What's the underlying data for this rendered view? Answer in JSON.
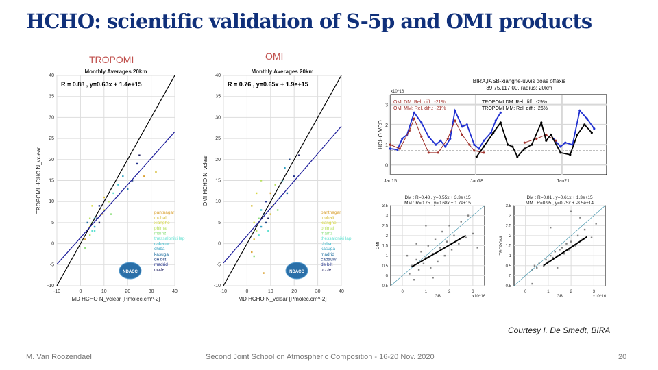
{
  "slide": {
    "title": "HCHO: scientific validation of S-5p and OMI products",
    "label_tropomi": "TROPOMI",
    "label_omi": "OMI",
    "courtesy": "Courtesy I. De Smedt, BIRA",
    "footer_author": "M. Van Roozendael",
    "footer_event": "Second Joint School on Atmospheric Composition - 16-20 Nov. 2020",
    "page_number": "20",
    "logo_text": "NDACC"
  },
  "colors": {
    "title": "#10307a",
    "fit": "#1a1a9a",
    "one_to_one": "#000000",
    "ground": "#1f2fd0",
    "omi": "#a0302a",
    "tropomi": "#000000",
    "scatter": "#808080"
  },
  "chart_data": [
    {
      "type": "scatter",
      "title": "Monthly Averages 20km",
      "annotation": "R = 0.88 , y=0.63x + 1.4e+15",
      "xlabel": "MD HCHO N_vclear [Pmolec.cm^-2]",
      "ylabel": "TROPOMI HCHO N_vclear",
      "xlim": [
        -10,
        40
      ],
      "ylim": [
        -10,
        40
      ],
      "xticks": [
        "-10",
        "0",
        "10",
        "20",
        "30",
        "40"
      ],
      "yticks": [
        "-10",
        "-5",
        "0",
        "5",
        "10",
        "15",
        "20",
        "25",
        "30",
        "35",
        "40"
      ],
      "grid": true,
      "lines": [
        {
          "name": "1:1",
          "slope": 1,
          "intercept": 0
        },
        {
          "name": "fit",
          "slope": 0.63,
          "intercept": 1.4
        }
      ],
      "legend": [
        "pantnagar",
        "mohali",
        "xianghe",
        "phimai",
        "mainz",
        "thessaloniki lap",
        "cabauw",
        "chiba",
        "kasuga",
        "de bilt",
        "madrid",
        "uccle"
      ],
      "legend_colors": [
        "#d9a030",
        "#d8c040",
        "#d8d840",
        "#b8e060",
        "#90e080",
        "#60e0d0",
        "#40c0d0",
        "#30a0c0",
        "#2070a0",
        "#204080",
        "#20308a",
        "#202060"
      ],
      "points": [
        [
          2,
          1
        ],
        [
          3,
          3
        ],
        [
          4,
          4
        ],
        [
          4,
          2
        ],
        [
          5,
          5
        ],
        [
          5,
          3
        ],
        [
          6,
          6
        ],
        [
          6,
          4
        ],
        [
          3,
          5
        ],
        [
          7,
          6
        ],
        [
          8,
          9
        ],
        [
          8,
          5
        ],
        [
          9,
          7
        ],
        [
          10,
          11
        ],
        [
          10,
          8
        ],
        [
          12,
          10
        ],
        [
          13,
          7
        ],
        [
          14,
          12
        ],
        [
          16,
          14
        ],
        [
          18,
          16
        ],
        [
          20,
          13
        ],
        [
          22,
          15
        ],
        [
          24,
          19
        ],
        [
          25,
          21
        ],
        [
          27,
          16
        ],
        [
          32,
          17
        ],
        [
          5,
          9
        ],
        [
          4,
          6
        ],
        [
          2,
          -1
        ],
        [
          6,
          3
        ]
      ]
    },
    {
      "type": "scatter",
      "title": "Monthly Averages 20km",
      "annotation": "R = 0.76 , y=0.65x + 1.9e+15",
      "xlabel": "MD HCHO N_vclear [Pmolec.cm^-2]",
      "ylabel": "OMI HCHO N_vclear",
      "xlim": [
        -10,
        40
      ],
      "ylim": [
        -10,
        40
      ],
      "xticks": [
        "-10",
        "0",
        "10",
        "20",
        "30",
        "40"
      ],
      "yticks": [
        "-10",
        "-5",
        "0",
        "5",
        "10",
        "15",
        "20",
        "25",
        "30",
        "35",
        "40"
      ],
      "grid": true,
      "lines": [
        {
          "name": "1:1",
          "slope": 1,
          "intercept": 0
        },
        {
          "name": "fit",
          "slope": 0.65,
          "intercept": 1.9
        }
      ],
      "legend": [
        "pantnagar",
        "mohali",
        "xianghe",
        "phimai",
        "mainz",
        "thessaloniki lap",
        "chiba",
        "kasuga",
        "madrid",
        "cabauw",
        "de bilt",
        "uccle"
      ],
      "legend_colors": [
        "#d9a030",
        "#d8c040",
        "#d8d840",
        "#b8e060",
        "#90e080",
        "#60e0d0",
        "#40c0d0",
        "#30a0c0",
        "#2070a0",
        "#204080",
        "#20308a",
        "#202060"
      ],
      "points": [
        [
          2,
          -2
        ],
        [
          3,
          1
        ],
        [
          3,
          5
        ],
        [
          4,
          3
        ],
        [
          5,
          6
        ],
        [
          5,
          2
        ],
        [
          6,
          8
        ],
        [
          6,
          4
        ],
        [
          7,
          7
        ],
        [
          8,
          5
        ],
        [
          8,
          10
        ],
        [
          9,
          6
        ],
        [
          10,
          12
        ],
        [
          10,
          7
        ],
        [
          11,
          9
        ],
        [
          12,
          14
        ],
        [
          13,
          8
        ],
        [
          14,
          11
        ],
        [
          15,
          15
        ],
        [
          16,
          18
        ],
        [
          17,
          12
        ],
        [
          18,
          20
        ],
        [
          20,
          16
        ],
        [
          22,
          21
        ],
        [
          7,
          -7
        ],
        [
          2,
          9
        ],
        [
          4,
          12
        ],
        [
          6,
          15
        ],
        [
          3,
          -3
        ],
        [
          9,
          3
        ]
      ]
    },
    {
      "type": "line",
      "title": "BIRA,IASB-xianghe-uvvis doas offaxis",
      "subtitle": "39.75,117.00, radius: 20km",
      "ylabel": "HCHO VCD",
      "yscale_label": "x10^16",
      "xticks": [
        "Jan15",
        "Jan18",
        "Jan21"
      ],
      "yticks": [
        "0",
        "1",
        "2",
        "3"
      ],
      "ylim": [
        -0.5,
        3.5
      ],
      "grid": true,
      "annotations": [
        "OMI DM: Rel. diff.: -21%",
        "OMI MM: Rel. diff.: -21%",
        "TROPOMI DM: Rel. diff.: -29%",
        "TROPOMI MM: Rel. diff.: -26%"
      ],
      "series": [
        {
          "color": "#1f2fd0",
          "points": [
            [
              "2015-02",
              0.8
            ],
            [
              "2015-05",
              0.75
            ],
            [
              "2015-07",
              1.3
            ],
            [
              "2015-09",
              1.5
            ],
            [
              "2015-12",
              2.6
            ],
            [
              "2016-03",
              2.1
            ],
            [
              "2016-06",
              1.4
            ],
            [
              "2016-09",
              1.0
            ],
            [
              "2016-11",
              1.2
            ],
            [
              "2017-01",
              0.9
            ],
            [
              "2017-03",
              1.3
            ],
            [
              "2017-05",
              2.7
            ],
            [
              "2017-08",
              1.9
            ],
            [
              "2017-10",
              2.0
            ],
            [
              "2018-01",
              1.0
            ],
            [
              "2018-03",
              0.8
            ],
            [
              "2018-05",
              1.2
            ],
            [
              "2018-08",
              1.6
            ],
            [
              "2018-10",
              2.2
            ],
            [
              "2018-12",
              2.6
            ],
            null,
            [
              "2020-10",
              1.3
            ],
            [
              "2021-01",
              0.9
            ],
            [
              "2021-03",
              1.1
            ],
            [
              "2021-06",
              1.0
            ],
            [
              "2021-09",
              2.7
            ],
            [
              "2021-12",
              2.3
            ],
            [
              "2022-03",
              1.8
            ]
          ]
        },
        {
          "name": "OMI",
          "color": "#a0302a",
          "points": [
            [
              "2015-02",
              1.0
            ],
            [
              "2015-06",
              0.8
            ],
            [
              "2015-10",
              1.7
            ],
            [
              "2015-12",
              2.3
            ],
            [
              "2016-03",
              1.4
            ],
            [
              "2016-06",
              0.6
            ],
            [
              "2016-10",
              0.6
            ],
            [
              "2017-02",
              1.3
            ],
            [
              "2017-05",
              2.2
            ],
            [
              "2017-08",
              1.5
            ],
            [
              "2017-11",
              1.0
            ],
            [
              "2018-01",
              0.7
            ],
            [
              "2018-05",
              0.6
            ],
            null,
            [
              "2019-10",
              1.1
            ],
            [
              "2020-03",
              1.3
            ],
            [
              "2020-07",
              1.5
            ],
            [
              "2020-11",
              1.2
            ]
          ]
        },
        {
          "name": "TROPOMI",
          "color": "#000000",
          "points": [
            [
              "2018-02",
              0.4
            ],
            [
              "2018-05",
              0.9
            ],
            [
              "2018-09",
              1.6
            ],
            [
              "2018-12",
              2.1
            ],
            [
              "2019-03",
              1.0
            ],
            [
              "2019-05",
              0.9
            ],
            [
              "2019-07",
              0.4
            ],
            [
              "2019-10",
              0.8
            ],
            [
              "2020-01",
              1.0
            ],
            [
              "2020-05",
              2.1
            ],
            [
              "2020-07",
              1.2
            ],
            [
              "2020-09",
              1.5
            ],
            [
              "2021-01",
              0.6
            ],
            [
              "2021-05",
              0.5
            ],
            [
              "2021-08",
              1.5
            ],
            [
              "2021-11",
              2.0
            ],
            [
              "2022-02",
              1.6
            ]
          ]
        }
      ]
    },
    {
      "type": "scatter",
      "annotation": [
        "DM : R=0.48 , y=0.55x + 3.3e+15",
        "MM : R=0.75 , y=0.68x + 1.7e+15"
      ],
      "xlabel": "GB",
      "ylabel": "OMI",
      "xscale_label": "x10^16",
      "xlim": [
        -0.5,
        3.5
      ],
      "ylim": [
        -0.5,
        3.5
      ],
      "xticks": [
        "0",
        "1",
        "2",
        "3"
      ],
      "yticks": [
        "-0.5",
        "0",
        "0.5",
        "1",
        "1.5",
        "2",
        "2.5",
        "3",
        "3.5"
      ],
      "grid": true,
      "lines": [
        {
          "name": "1:1",
          "slope": 1,
          "intercept": 0
        },
        {
          "name": "MM fit",
          "slope": 0.68,
          "intercept": 0.17,
          "from": 0.4,
          "to": 2.7
        }
      ],
      "points": [
        [
          0.3,
          0.1
        ],
        [
          0.4,
          0.5
        ],
        [
          0.5,
          -0.2
        ],
        [
          0.6,
          0.8
        ],
        [
          0.7,
          0.3
        ],
        [
          0.8,
          1.2
        ],
        [
          0.9,
          0.6
        ],
        [
          1.0,
          0.9
        ],
        [
          1.1,
          1.5
        ],
        [
          1.2,
          0.4
        ],
        [
          1.3,
          1.1
        ],
        [
          1.4,
          1.8
        ],
        [
          1.5,
          0.7
        ],
        [
          1.6,
          1.4
        ],
        [
          1.7,
          2.2
        ],
        [
          1.8,
          1.0
        ],
        [
          1.9,
          1.7
        ],
        [
          2.0,
          2.5
        ],
        [
          2.1,
          1.3
        ],
        [
          2.2,
          2.0
        ],
        [
          2.4,
          1.6
        ],
        [
          2.5,
          2.7
        ],
        [
          2.7,
          1.9
        ],
        [
          3.0,
          2.1
        ],
        [
          3.2,
          1.4
        ],
        [
          0.2,
          1.0
        ],
        [
          0.6,
          1.6
        ],
        [
          1.0,
          2.5
        ],
        [
          1.3,
          -0.1
        ],
        [
          2.8,
          3.0
        ]
      ]
    },
    {
      "type": "scatter",
      "annotation": [
        "DM : R=0.81 , y=0.61x + 1.3e+15",
        "MM : R=0.95 , y=0.75x + -8.5e+14"
      ],
      "xlabel": "GB",
      "ylabel": "TROPOMI",
      "xscale_label": "x10^16",
      "xlim": [
        -0.5,
        3.5
      ],
      "ylim": [
        -0.5,
        3.5
      ],
      "xticks": [
        "0",
        "1",
        "2",
        "3"
      ],
      "yticks": [
        "-0.5",
        "0",
        "0.5",
        "1",
        "1.5",
        "2",
        "2.5",
        "3",
        "3.5"
      ],
      "grid": true,
      "lines": [
        {
          "name": "1:1",
          "slope": 1,
          "intercept": 0
        },
        {
          "name": "MM fit",
          "slope": 0.75,
          "intercept": -0.085,
          "from": 0.8,
          "to": 2.7
        }
      ],
      "points": [
        [
          0.3,
          0.3
        ],
        [
          0.4,
          0.5
        ],
        [
          0.5,
          0.4
        ],
        [
          0.6,
          0.6
        ],
        [
          0.8,
          0.5
        ],
        [
          0.9,
          0.8
        ],
        [
          1.0,
          0.7
        ],
        [
          1.1,
          1.0
        ],
        [
          1.2,
          0.9
        ],
        [
          1.3,
          1.2
        ],
        [
          1.4,
          1.0
        ],
        [
          1.5,
          1.3
        ],
        [
          1.6,
          1.4
        ],
        [
          1.7,
          1.1
        ],
        [
          1.8,
          1.6
        ],
        [
          1.9,
          1.3
        ],
        [
          2.0,
          1.7
        ],
        [
          2.2,
          1.5
        ],
        [
          2.3,
          2.0
        ],
        [
          2.5,
          1.8
        ],
        [
          2.6,
          2.3
        ],
        [
          2.9,
          1.9
        ],
        [
          3.1,
          2.6
        ],
        [
          1.1,
          2.4
        ],
        [
          2.0,
          3.2
        ],
        [
          0.3,
          -0.4
        ],
        [
          1.4,
          0.4
        ],
        [
          2.4,
          2.9
        ]
      ]
    }
  ]
}
